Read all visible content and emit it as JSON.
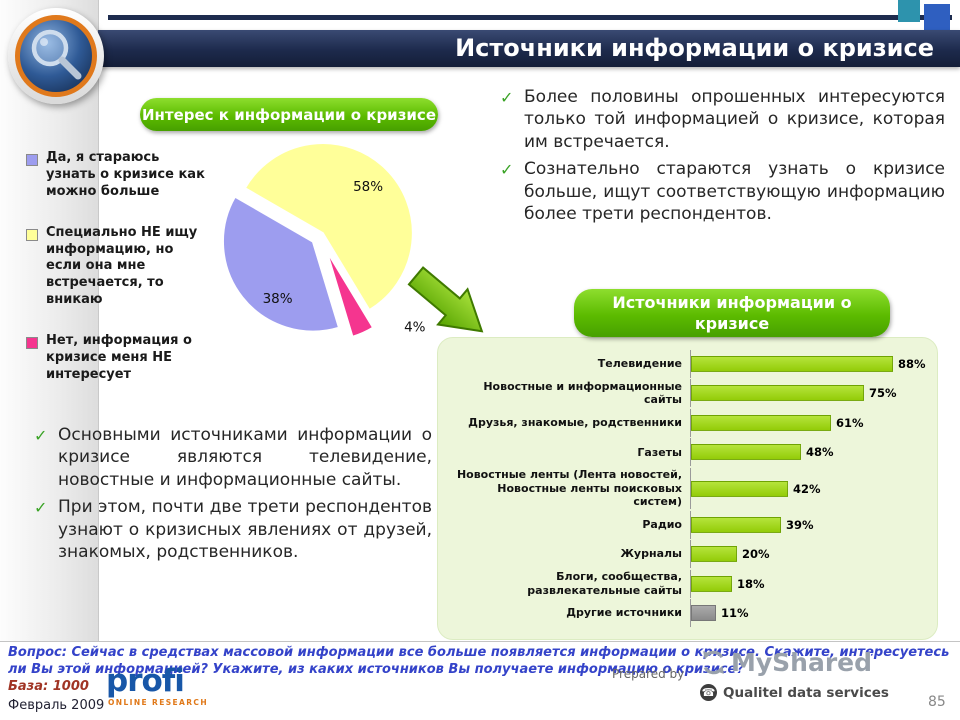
{
  "header": {
    "title": "Источники информации о кризисе"
  },
  "icons": {
    "check": "✓",
    "phone": "☎"
  },
  "interest_section": {
    "pill_label": "Интерес к информации о кризисе",
    "legend": [
      {
        "color": "#9D9DEF",
        "text": "Да, я стараюсь узнать о кризисе как можно больше"
      },
      {
        "color": "#FFFF99",
        "text": "Специально НЕ ищу информацию, но если она мне встречается, то вникаю"
      },
      {
        "color": "#F5358F",
        "text": "Нет, информация о кризисе меня НЕ интересует"
      }
    ]
  },
  "sources_section": {
    "pill_label": "Источники информации о кризисе"
  },
  "right_bullets": [
    "Более половины опрошенных интересуются только той информацией о кризисе, которая им встречается.",
    "Сознательно стараются узнать о кризисе больше, ищут соответствующую информацию более трети респондентов."
  ],
  "left_bullets": [
    "Основными источниками информации о кризисе являются телевидение, новостные и информационные сайты.",
    "При этом, почти две трети респондентов узнают о кризисных явлениях от друзей, знакомых, родственников."
  ],
  "chart_data": [
    {
      "type": "pie",
      "title": "Интерес к информации о кризисе",
      "slices": [
        {
          "label": "Специально НЕ ищу информацию, но если она мне встречается, то вникаю",
          "value": 58,
          "percent_label": "58%",
          "color": "#FFFF99"
        },
        {
          "label": "Нет, информация о кризисе меня НЕ интересует",
          "value": 4,
          "percent_label": "4%",
          "color": "#F5358F"
        },
        {
          "label": "Да, я стараюсь узнать о кризисе как можно больше",
          "value": 38,
          "percent_label": "38%",
          "color": "#9D9DEF"
        }
      ]
    },
    {
      "type": "bar",
      "orientation": "horizontal",
      "title": "Источники информации о кризисе",
      "categories": [
        "Телевидение",
        "Новостные и информационные сайты",
        "Друзья, знакомые, родственники",
        "Газеты",
        "Новостные ленты (Лента новостей, Новостные ленты поисковых систем)",
        "Радио",
        "Журналы",
        "Блоги, сообщества, развлекательные сайты",
        "Другие источники"
      ],
      "values": [
        88,
        75,
        61,
        48,
        42,
        39,
        20,
        18,
        11
      ],
      "value_labels": [
        "88%",
        "75%",
        "61%",
        "48%",
        "42%",
        "39%",
        "20%",
        "18%",
        "11%"
      ],
      "bar_color": "#9ACD0E",
      "other_bar_color": "#999999",
      "xlim": [
        0,
        100
      ],
      "grid": false,
      "legend_position": "none"
    }
  ],
  "footer": {
    "question": "Вопрос: Сейчас в средствах массовой информации все больше появляется информации о кризисе. Скажите, интересуетесь ли Вы этой информацией? Укажите, из каких источников Вы получаете информацию о кризисе?",
    "base": "База: 1000",
    "date": "Февраль 2009",
    "profi_logo": {
      "name": "profi",
      "subtitle": "ONLINE RESEARCH"
    },
    "prepared_by": "Prepared by",
    "myshared": "MyShared",
    "qualitel": "Qualitel data services",
    "page_number": "85"
  }
}
